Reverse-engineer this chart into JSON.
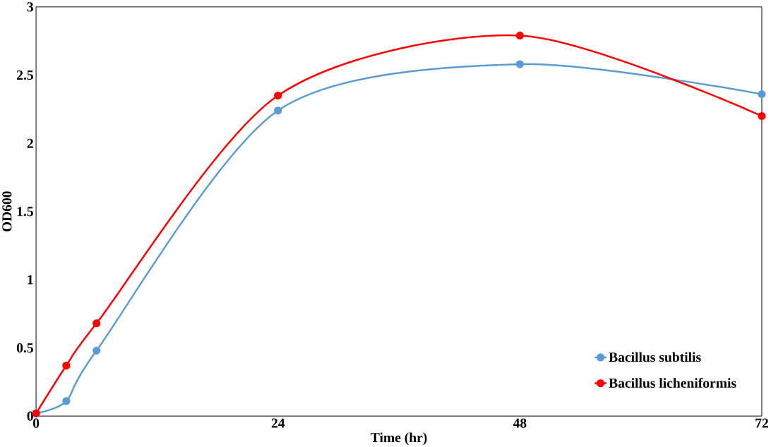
{
  "chart_data": {
    "type": "line",
    "xlabel": "Time (hr)",
    "ylabel": "OD600",
    "x": [
      0,
      3,
      6,
      24,
      48,
      72
    ],
    "series": [
      {
        "name": "Bacillus subtilis",
        "color": "#5b9bd5",
        "values": [
          0.02,
          0.11,
          0.48,
          2.24,
          2.58,
          2.36
        ]
      },
      {
        "name": "Bacillus licheniformis",
        "color": "#ff0000",
        "values": [
          0.02,
          0.37,
          0.68,
          2.35,
          2.79,
          2.2
        ]
      }
    ],
    "xlim": [
      0,
      72
    ],
    "xticks": [
      0,
      24,
      48,
      72
    ],
    "ylim": [
      0,
      3
    ],
    "yticks": [
      0,
      0.5,
      1,
      1.5,
      2,
      2.5,
      3
    ],
    "grid": false,
    "legend": "bottom right",
    "marker": "circle",
    "line_style": "solid"
  }
}
